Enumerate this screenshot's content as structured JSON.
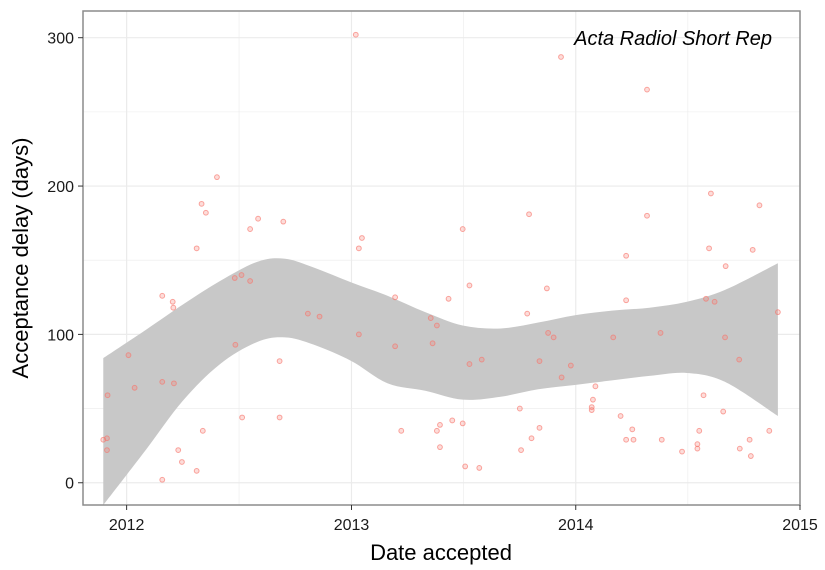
{
  "chart_data": {
    "type": "scatter",
    "title": "Acta Radiol Short Rep",
    "xlabel": "Date accepted",
    "ylabel": "Acceptance delay (days)",
    "xlim": [
      "2011-10-22",
      "2015-01-01"
    ],
    "ylim": [
      -15,
      318
    ],
    "x_ticks": [
      "2012",
      "2013",
      "2014",
      "2015"
    ],
    "x_tick_dates": [
      "2012-01-01",
      "2013-01-01",
      "2014-01-01",
      "2015-01-01"
    ],
    "y_ticks": [
      0,
      100,
      200,
      300
    ],
    "grid": true,
    "legend": "none",
    "colors": {
      "points": "#f8766d",
      "band": "#c8c8c8",
      "grid": "#ebebeb",
      "border": "#8c8c8c"
    },
    "series": [
      {
        "values": [
          [
            "2011-11-24",
            29
          ],
          [
            "2011-11-30",
            30
          ],
          [
            "2011-11-30",
            22
          ],
          [
            "2011-12-01",
            59
          ],
          [
            "2012-01-04",
            86
          ],
          [
            "2012-01-14",
            64
          ],
          [
            "2012-02-28",
            126
          ],
          [
            "2012-02-28",
            68
          ],
          [
            "2012-02-28",
            2
          ],
          [
            "2012-03-16",
            122
          ],
          [
            "2012-03-17",
            118
          ],
          [
            "2012-03-18",
            67
          ],
          [
            "2012-03-25",
            22
          ],
          [
            "2012-03-31",
            14
          ],
          [
            "2012-04-24",
            158
          ],
          [
            "2012-04-24",
            8
          ],
          [
            "2012-05-02",
            188
          ],
          [
            "2012-05-04",
            35
          ],
          [
            "2012-05-09",
            182
          ],
          [
            "2012-05-27",
            206
          ],
          [
            "2012-06-25",
            138
          ],
          [
            "2012-06-26",
            93
          ],
          [
            "2012-07-06",
            140
          ],
          [
            "2012-07-07",
            44
          ],
          [
            "2012-07-20",
            136
          ],
          [
            "2012-07-20",
            171
          ],
          [
            "2012-08-02",
            178
          ],
          [
            "2012-09-06",
            82
          ],
          [
            "2012-09-06",
            44
          ],
          [
            "2012-09-12",
            176
          ],
          [
            "2012-10-22",
            114
          ],
          [
            "2012-11-10",
            112
          ],
          [
            "2013-01-08",
            302
          ],
          [
            "2013-01-13",
            100
          ],
          [
            "2013-01-13",
            158
          ],
          [
            "2013-01-18",
            165
          ],
          [
            "2013-03-13",
            125
          ],
          [
            "2013-03-13",
            92
          ],
          [
            "2013-03-23",
            35
          ],
          [
            "2013-05-10",
            111
          ],
          [
            "2013-05-13",
            94
          ],
          [
            "2013-05-20",
            106
          ],
          [
            "2013-05-20",
            35
          ],
          [
            "2013-05-25",
            39
          ],
          [
            "2013-05-25",
            24
          ],
          [
            "2013-06-08",
            124
          ],
          [
            "2013-06-14",
            42
          ],
          [
            "2013-07-01",
            171
          ],
          [
            "2013-07-01",
            40
          ],
          [
            "2013-07-05",
            11
          ],
          [
            "2013-07-12",
            133
          ],
          [
            "2013-07-12",
            80
          ],
          [
            "2013-07-28",
            10
          ],
          [
            "2013-08-01",
            83
          ],
          [
            "2013-10-02",
            50
          ],
          [
            "2013-10-04",
            22
          ],
          [
            "2013-10-14",
            114
          ],
          [
            "2013-10-17",
            181
          ],
          [
            "2013-10-21",
            30
          ],
          [
            "2013-11-03",
            37
          ],
          [
            "2013-11-03",
            82
          ],
          [
            "2013-11-15",
            131
          ],
          [
            "2013-11-17",
            101
          ],
          [
            "2013-11-26",
            98
          ],
          [
            "2013-12-08",
            287
          ],
          [
            "2013-12-09",
            71
          ],
          [
            "2013-12-24",
            79
          ],
          [
            "2014-01-27",
            51
          ],
          [
            "2014-01-27",
            49
          ],
          [
            "2014-01-29",
            56
          ],
          [
            "2014-02-02",
            65
          ],
          [
            "2014-03-03",
            98
          ],
          [
            "2014-03-15",
            45
          ],
          [
            "2014-03-24",
            153
          ],
          [
            "2014-03-24",
            123
          ],
          [
            "2014-03-24",
            29
          ],
          [
            "2014-04-03",
            36
          ],
          [
            "2014-04-05",
            29
          ],
          [
            "2014-04-27",
            265
          ],
          [
            "2014-04-27",
            180
          ],
          [
            "2014-05-19",
            101
          ],
          [
            "2014-05-21",
            29
          ],
          [
            "2014-06-23",
            21
          ],
          [
            "2014-07-18",
            26
          ],
          [
            "2014-07-18",
            23
          ],
          [
            "2014-07-21",
            35
          ],
          [
            "2014-07-28",
            59
          ],
          [
            "2014-08-01",
            124
          ],
          [
            "2014-08-06",
            158
          ],
          [
            "2014-08-09",
            195
          ],
          [
            "2014-08-15",
            122
          ],
          [
            "2014-08-29",
            48
          ],
          [
            "2014-09-01",
            98
          ],
          [
            "2014-09-02",
            146
          ],
          [
            "2014-09-24",
            83
          ],
          [
            "2014-09-25",
            23
          ],
          [
            "2014-10-11",
            29
          ],
          [
            "2014-10-13",
            18
          ],
          [
            "2014-10-16",
            157
          ],
          [
            "2014-10-27",
            187
          ],
          [
            "2014-11-12",
            35
          ],
          [
            "2014-11-26",
            115
          ]
        ]
      }
    ],
    "smooth_band": {
      "x": [
        "2011-11-24",
        "2012-02-01",
        "2012-04-01",
        "2012-06-01",
        "2012-08-01",
        "2012-09-15",
        "2012-11-01",
        "2013-01-01",
        "2013-03-01",
        "2013-05-01",
        "2013-07-01",
        "2013-09-01",
        "2013-11-01",
        "2014-01-01",
        "2014-03-01",
        "2014-05-01",
        "2014-07-01",
        "2014-09-01",
        "2014-11-26"
      ],
      "upper": [
        84,
        103,
        120,
        136,
        149,
        151,
        145,
        135,
        126,
        115,
        106,
        104,
        108,
        113,
        116,
        118,
        122,
        130,
        148
      ],
      "lower": [
        -15,
        22,
        55,
        80,
        95,
        98,
        93,
        82,
        67,
        62,
        56,
        58,
        63,
        66,
        69,
        72,
        74,
        68,
        45
      ]
    }
  }
}
